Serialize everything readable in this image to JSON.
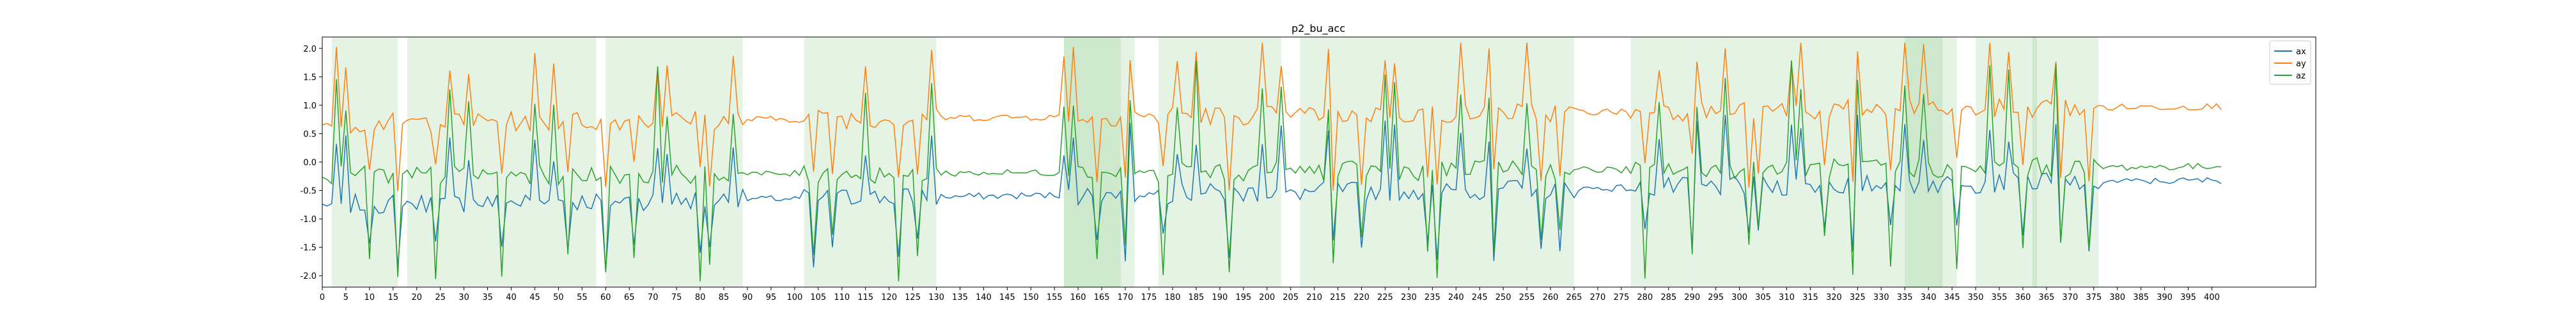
{
  "chart_data": {
    "type": "line",
    "title": "p2_bu_acc",
    "xlabel": "",
    "ylabel": "",
    "xlim": [
      0,
      422
    ],
    "ylim": [
      -2.2,
      2.2
    ],
    "x_tick_step": 5,
    "x_tick_max": 400,
    "y_ticks": [
      "-2.0",
      "-1.5",
      "-1.0",
      "-0.5",
      "0.0",
      "0.5",
      "1.0",
      "1.5",
      "2.0"
    ],
    "grid": false,
    "legend": "top-right",
    "series": [
      {
        "name": "ax",
        "color": "#1f77b4",
        "base": -0.75,
        "end": -0.32,
        "amp": 0.55
      },
      {
        "name": "ay",
        "color": "#ff7f0e",
        "base": 0.68,
        "end": 0.98,
        "amp": 0.6
      },
      {
        "name": "az",
        "color": "#2ca02c",
        "base": -0.25,
        "end": -0.08,
        "amp": 0.85
      }
    ],
    "active_intervals": [
      [
        2,
        16
      ],
      [
        18,
        31
      ],
      [
        31,
        44
      ],
      [
        44,
        58
      ],
      [
        60,
        76
      ],
      [
        76,
        89
      ],
      [
        102,
        115
      ],
      [
        115,
        130
      ],
      [
        157,
        163
      ],
      [
        157,
        172
      ],
      [
        163,
        169
      ],
      [
        177,
        184
      ],
      [
        184,
        203
      ],
      [
        207,
        222
      ],
      [
        222,
        237
      ],
      [
        237,
        250
      ],
      [
        250,
        265
      ],
      [
        277,
        290
      ],
      [
        290,
        303
      ],
      [
        303,
        317
      ],
      [
        317,
        331
      ],
      [
        331,
        343
      ],
      [
        335,
        346
      ],
      [
        350,
        363
      ],
      [
        362,
        376
      ]
    ],
    "shade_color": "#2ca02c"
  }
}
